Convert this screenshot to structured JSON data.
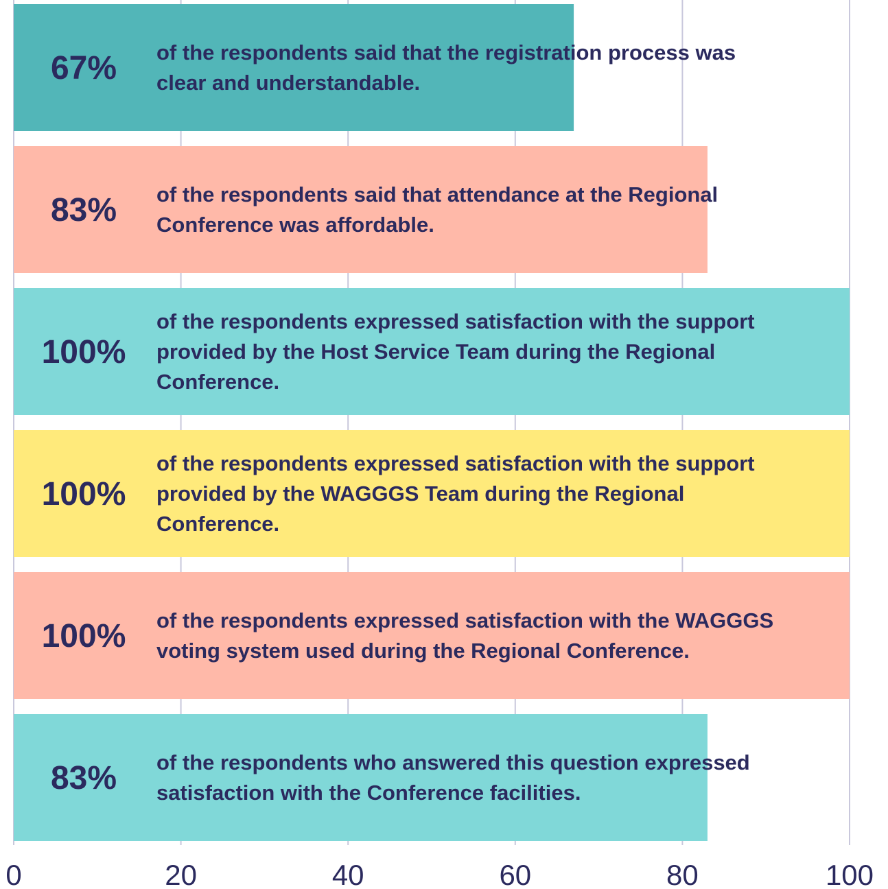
{
  "chart_data": {
    "type": "bar",
    "orientation": "horizontal",
    "categories": [
      "of the respondents said that the registration process was clear and understandable.",
      "of the respondents said that attendance at the Regional Conference was affordable.",
      "of the respondents expressed satisfaction with the support provided by the Host Service Team during the Regional Conference.",
      "of the respondents expressed satisfaction with the support provided by the WAGGGS Team during the Regional Conference.",
      "of the respondents expressed satisfaction with the WAGGGS voting system used during the Regional Conference.",
      "of the respondents who answered this question expressed satisfaction with the Conference facilities."
    ],
    "values": [
      67,
      83,
      100,
      100,
      100,
      83
    ],
    "value_labels": [
      "67%",
      "83%",
      "100%",
      "100%",
      "100%",
      "83%"
    ],
    "colors": [
      "#52b6b8",
      "#ffb9a9",
      "#80d8d8",
      "#ffea7b",
      "#ffb9a9",
      "#80d8d8"
    ],
    "xlim": [
      0,
      100
    ],
    "xticks": [
      0,
      20,
      40,
      60,
      80,
      100
    ],
    "grid": true
  }
}
